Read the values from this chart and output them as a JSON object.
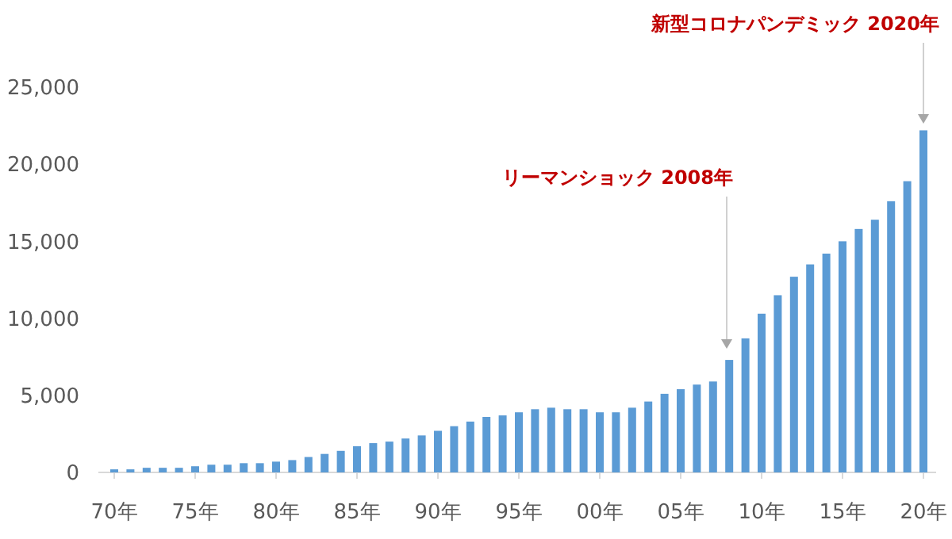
{
  "chart_data": {
    "type": "bar",
    "categories": [
      "70年",
      null,
      null,
      null,
      null,
      "75年",
      null,
      null,
      null,
      null,
      "80年",
      null,
      null,
      null,
      null,
      "85年",
      null,
      null,
      null,
      null,
      "90年",
      null,
      null,
      null,
      null,
      "95年",
      null,
      null,
      null,
      null,
      "00年",
      null,
      null,
      null,
      null,
      "05年",
      null,
      null,
      null,
      null,
      "10年",
      null,
      null,
      null,
      null,
      "15年",
      null,
      null,
      null,
      null,
      "20年"
    ],
    "values": [
      200,
      200,
      300,
      300,
      300,
      400,
      500,
      500,
      600,
      600,
      700,
      800,
      1000,
      1200,
      1400,
      1700,
      1900,
      2000,
      2200,
      2400,
      2700,
      3000,
      3300,
      3600,
      3700,
      3900,
      4100,
      4200,
      4100,
      4100,
      3900,
      3900,
      4200,
      4600,
      5100,
      5400,
      5700,
      5900,
      7300,
      8700,
      10300,
      11500,
      12700,
      13500,
      14200,
      15000,
      15800,
      16400,
      17600,
      18900,
      22200
    ],
    "color": "#5b9bd5",
    "ylim": [
      0,
      25000
    ],
    "yticks": [
      {
        "value": 0,
        "label": "0"
      },
      {
        "value": 5000,
        "label": "5,000"
      },
      {
        "value": 10000,
        "label": "10,000"
      },
      {
        "value": 15000,
        "label": "15,000"
      },
      {
        "value": 20000,
        "label": "20,000"
      },
      {
        "value": 25000,
        "label": "25,000"
      }
    ],
    "grid": false,
    "annotations": [
      "リーマンショック 2008年",
      "新型コロナパンデミック 2020年"
    ]
  }
}
